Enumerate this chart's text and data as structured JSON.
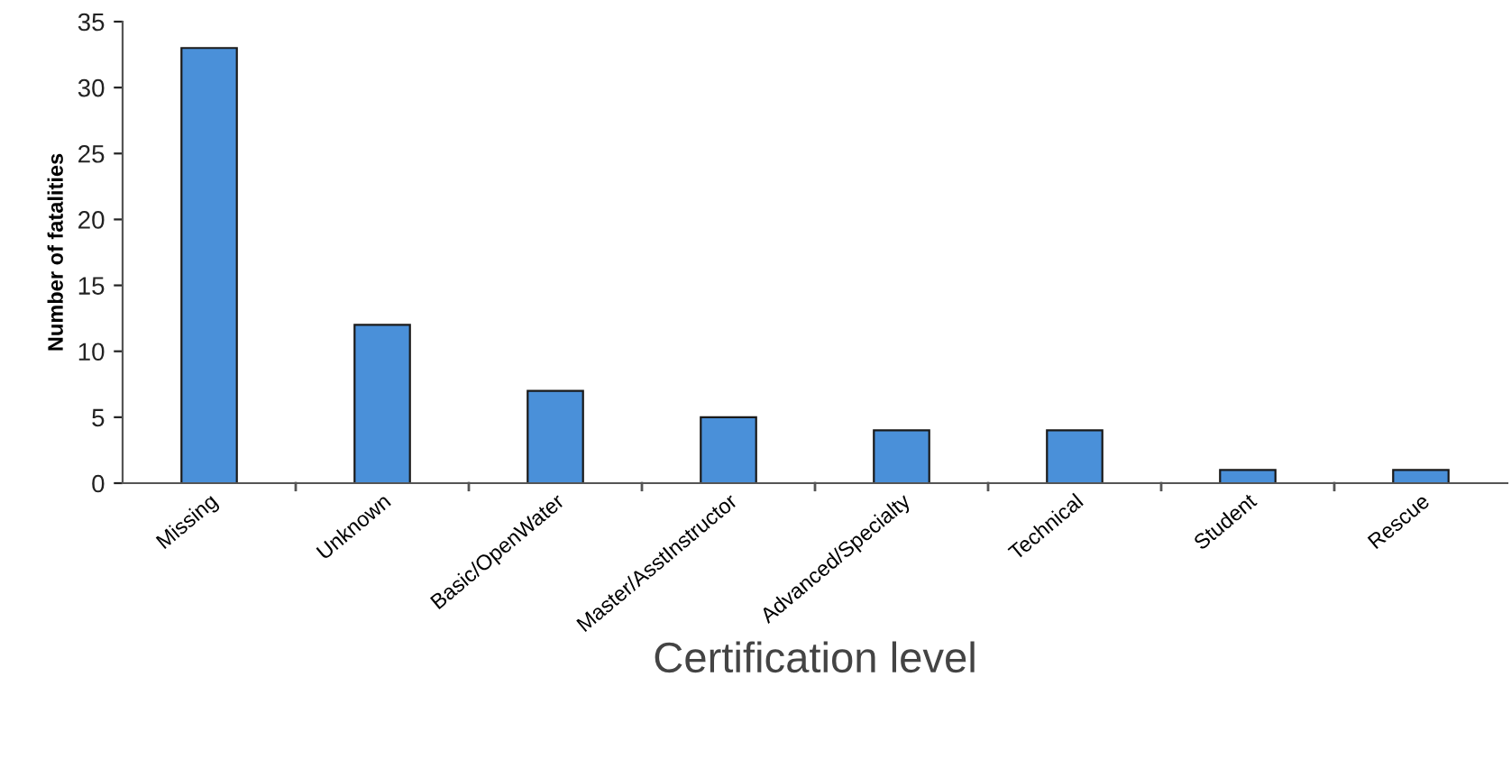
{
  "chart_data": {
    "type": "bar",
    "xlabel": "Certification level",
    "ylabel": "Number of fatalities",
    "categories": [
      "Missing",
      "Unknown",
      "Basic/OpenWater",
      "Master/AsstInstructor",
      "Advanced/Specialty",
      "Technical",
      "Student",
      "Rescue"
    ],
    "values": [
      33,
      12,
      7,
      5,
      4,
      4,
      1,
      1
    ],
    "color": "#4a90d9",
    "ylim": [
      0,
      35
    ],
    "yticks": [
      0,
      5,
      10,
      15,
      20,
      25,
      30,
      35
    ],
    "grid": false,
    "legend": false
  }
}
